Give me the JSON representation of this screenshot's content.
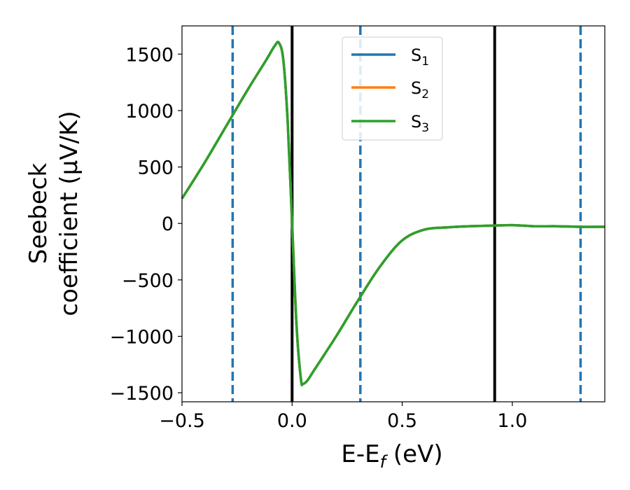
{
  "chart_data": {
    "type": "line",
    "xlabel": "E-E_f (eV)",
    "xlabel_main": "E-E",
    "xlabel_sub": "f",
    "xlabel_tail": " (eV)",
    "ylabel_line1": "Seebeck",
    "ylabel_line2": "coefficient  (μV/K)",
    "xlim": [
      -0.5,
      1.42
    ],
    "ylim": [
      -1580,
      1750
    ],
    "xticks": [
      -0.5,
      0.0,
      0.5,
      1.0
    ],
    "xtick_labels": [
      "−0.5",
      "0.0",
      "0.5",
      "1.0"
    ],
    "yticks": [
      -1500,
      -1000,
      -500,
      0,
      500,
      1000,
      1500
    ],
    "ytick_labels": [
      "−1500",
      "−1000",
      "−500",
      "0",
      "500",
      "1000",
      "1500"
    ],
    "legend_position": "top-center",
    "series": [
      {
        "name": "S",
        "sub": "1",
        "color": "#1f77b4",
        "x": [
          -0.5,
          -0.4,
          -0.3,
          -0.2,
          -0.12,
          -0.08,
          -0.06,
          -0.04,
          -0.02,
          0.0,
          0.02,
          0.04,
          0.05,
          0.07,
          0.1,
          0.2,
          0.3,
          0.4,
          0.5,
          0.6,
          0.7,
          0.8,
          0.9,
          1.0,
          1.1,
          1.2,
          1.3,
          1.42
        ],
        "y": [
          220,
          530,
          860,
          1190,
          1440,
          1570,
          1600,
          1450,
          900,
          0,
          -900,
          -1380,
          -1420,
          -1390,
          -1300,
          -1000,
          -680,
          -380,
          -150,
          -55,
          -35,
          -25,
          -20,
          -15,
          -25,
          -25,
          -30,
          -30
        ]
      },
      {
        "name": "S",
        "sub": "2",
        "color": "#ff7f0e",
        "x": [
          -0.5,
          -0.4,
          -0.3,
          -0.2,
          -0.12,
          -0.08,
          -0.06,
          -0.04,
          -0.02,
          0.0,
          0.02,
          0.04,
          0.05,
          0.07,
          0.1,
          0.2,
          0.3,
          0.4,
          0.5,
          0.6,
          0.7,
          0.8,
          0.9,
          1.0,
          1.1,
          1.2,
          1.3,
          1.42
        ],
        "y": [
          220,
          530,
          860,
          1190,
          1440,
          1570,
          1600,
          1450,
          900,
          0,
          -900,
          -1380,
          -1420,
          -1390,
          -1300,
          -1000,
          -680,
          -380,
          -150,
          -55,
          -35,
          -25,
          -20,
          -15,
          -25,
          -25,
          -30,
          -30
        ]
      },
      {
        "name": "S",
        "sub": "3",
        "color": "#2ca02c",
        "x": [
          -0.5,
          -0.4,
          -0.3,
          -0.2,
          -0.12,
          -0.08,
          -0.06,
          -0.04,
          -0.02,
          0.0,
          0.02,
          0.04,
          0.05,
          0.07,
          0.1,
          0.2,
          0.3,
          0.4,
          0.5,
          0.6,
          0.7,
          0.8,
          0.9,
          1.0,
          1.1,
          1.2,
          1.3,
          1.42
        ],
        "y": [
          220,
          530,
          860,
          1190,
          1440,
          1570,
          1600,
          1450,
          900,
          0,
          -900,
          -1380,
          -1420,
          -1390,
          -1300,
          -1000,
          -680,
          -380,
          -150,
          -55,
          -35,
          -25,
          -20,
          -15,
          -25,
          -25,
          -30,
          -30
        ]
      }
    ],
    "vlines": [
      {
        "x": -0.27,
        "style": "dashed",
        "color": "#1f77b4"
      },
      {
        "x": 0.0,
        "style": "solid",
        "color": "#000000"
      },
      {
        "x": 0.31,
        "style": "dashed",
        "color": "#1f77b4"
      },
      {
        "x": 0.92,
        "style": "solid",
        "color": "#000000"
      },
      {
        "x": 1.31,
        "style": "dashed",
        "color": "#1f77b4"
      }
    ]
  }
}
